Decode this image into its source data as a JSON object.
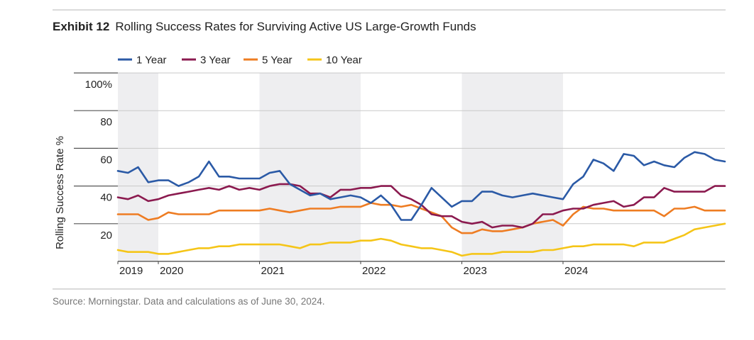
{
  "exhibit": {
    "label": "Exhibit 12",
    "title": "Rolling Success Rates for Surviving Active US Large-Growth Funds"
  },
  "source": "Source: Morningstar. Data and calculations as of June 30, 2024.",
  "colors": {
    "1 Year": "#2b5aa6",
    "3 Year": "#8b1a4f",
    "5 Year": "#ee7c22",
    "10 Year": "#f5c518",
    "shade": "#eeeef0",
    "grid": "#c8c8c8"
  },
  "chart_data": {
    "type": "line",
    "ylabel": "Rolling Success Rate %",
    "y_ticks": [
      "100%",
      "80",
      "60",
      "40",
      "20"
    ],
    "ylim": [
      0,
      100
    ],
    "x_ticks": [
      "2019",
      "2020",
      "2021",
      "2022",
      "2023",
      "2024"
    ],
    "x_ticks_index": [
      0,
      4,
      14,
      24,
      34,
      44
    ],
    "shaded_ranges_index": [
      [
        0,
        4
      ],
      [
        14,
        24
      ],
      [
        34,
        44
      ]
    ],
    "series": [
      {
        "name": "1 Year",
        "values": [
          48,
          47,
          50,
          42,
          43,
          43,
          40,
          42,
          45,
          53,
          45,
          45,
          44,
          44,
          44,
          47,
          48,
          41,
          38,
          35,
          36,
          33,
          34,
          35,
          34,
          31,
          35,
          30,
          22,
          22,
          30,
          39,
          34,
          29,
          32,
          32,
          37,
          37,
          35,
          34,
          35,
          36,
          35,
          34,
          33,
          41,
          45,
          54,
          52,
          48,
          57,
          56,
          51,
          53,
          51,
          50,
          55,
          58,
          57,
          54,
          53
        ]
      },
      {
        "name": "3 Year",
        "values": [
          34,
          33,
          35,
          32,
          33,
          35,
          36,
          37,
          38,
          39,
          38,
          40,
          38,
          39,
          38,
          40,
          41,
          41,
          40,
          36,
          36,
          34,
          38,
          38,
          39,
          39,
          40,
          40,
          35,
          33,
          30,
          25,
          24,
          24,
          21,
          20,
          21,
          18,
          19,
          19,
          18,
          20,
          25,
          25,
          27,
          28,
          28,
          30,
          31,
          32,
          29,
          30,
          34,
          34,
          39,
          37,
          37,
          37,
          37,
          40,
          40
        ]
      },
      {
        "name": "5 Year",
        "values": [
          25,
          25,
          25,
          22,
          23,
          26,
          25,
          25,
          25,
          25,
          27,
          27,
          27,
          27,
          27,
          28,
          27,
          26,
          27,
          28,
          28,
          28,
          29,
          29,
          29,
          31,
          30,
          30,
          29,
          30,
          28,
          26,
          24,
          18,
          15,
          15,
          17,
          16,
          16,
          17,
          18,
          20,
          21,
          22,
          19,
          25,
          29,
          28,
          28,
          27,
          27,
          27,
          27,
          27,
          24,
          28,
          28,
          29,
          27,
          27,
          27
        ]
      },
      {
        "name": "10 Year",
        "values": [
          6,
          5,
          5,
          5,
          4,
          4,
          5,
          6,
          7,
          7,
          8,
          8,
          9,
          9,
          9,
          9,
          9,
          8,
          7,
          9,
          9,
          10,
          10,
          10,
          11,
          11,
          12,
          11,
          9,
          8,
          7,
          7,
          6,
          5,
          3,
          4,
          4,
          4,
          5,
          5,
          5,
          5,
          6,
          6,
          7,
          8,
          8,
          9,
          9,
          9,
          9,
          8,
          10,
          10,
          10,
          12,
          14,
          17,
          18,
          19,
          20
        ]
      }
    ]
  }
}
